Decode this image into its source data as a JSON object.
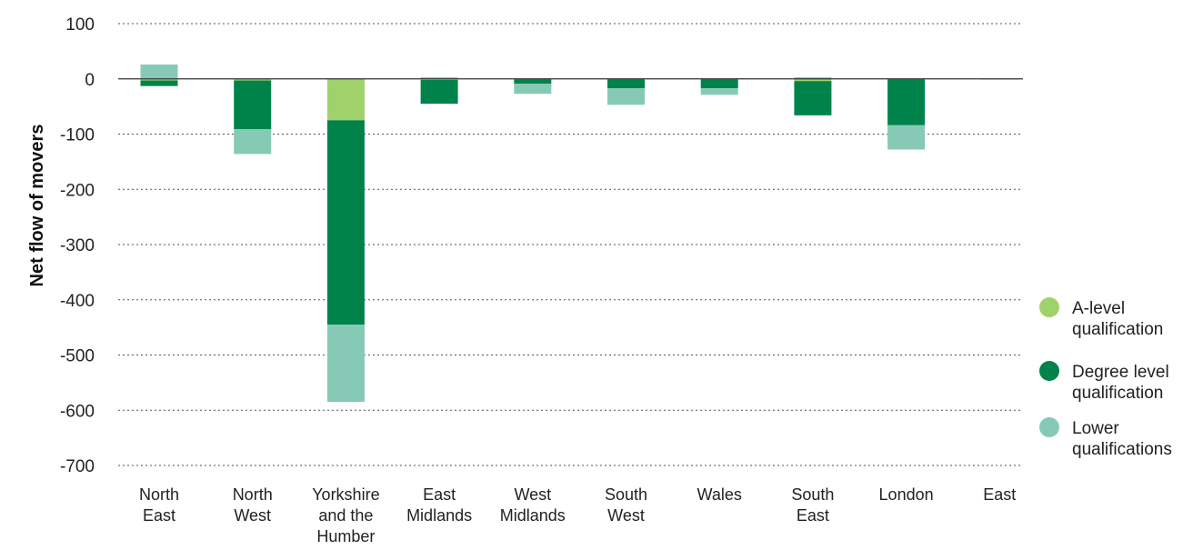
{
  "chart_data": {
    "type": "bar",
    "stacked": true,
    "title": "",
    "xlabel": "",
    "ylabel": "Net flow of movers",
    "ylim": [
      -700,
      100
    ],
    "yticks": [
      100,
      0,
      -100,
      -200,
      -300,
      -400,
      -500,
      -600,
      -700
    ],
    "yticks_labels": [
      "100",
      "0",
      "-100",
      "-200",
      "-300",
      "-400",
      "-500",
      "-600",
      "-700"
    ],
    "grid": "horizontal dotted",
    "legend_position": "right",
    "categories": [
      [
        "North",
        "East"
      ],
      [
        "North",
        "West"
      ],
      [
        "Yorkshire",
        "and the",
        "Humber"
      ],
      [
        "East",
        "Midlands"
      ],
      [
        "West",
        "Midlands"
      ],
      [
        "South",
        "West"
      ],
      [
        "Wales"
      ],
      [
        "South",
        "East"
      ],
      [
        "London"
      ],
      [
        "East"
      ]
    ],
    "series": [
      {
        "name": "A-level qualification",
        "legend_lines": [
          "A-level",
          "qualification"
        ],
        "color": "#9fd26a",
        "values": [
          -3,
          -3,
          -75,
          -2,
          -1,
          -1,
          -1,
          -4,
          -1,
          0
        ]
      },
      {
        "name": "Degree level qualification",
        "legend_lines": [
          "Degree level",
          "qualification"
        ],
        "color": "#00834a",
        "values": [
          -10,
          -88,
          -370,
          -43,
          -8,
          -16,
          -16,
          -62,
          -83,
          -1
        ]
      },
      {
        "name": "Lower qualifications",
        "legend_lines": [
          "Lower",
          "qualifications"
        ],
        "color": "#86cab5",
        "values": [
          26,
          -45,
          -140,
          3,
          -18,
          -30,
          -12,
          3,
          -44,
          0
        ]
      }
    ]
  }
}
